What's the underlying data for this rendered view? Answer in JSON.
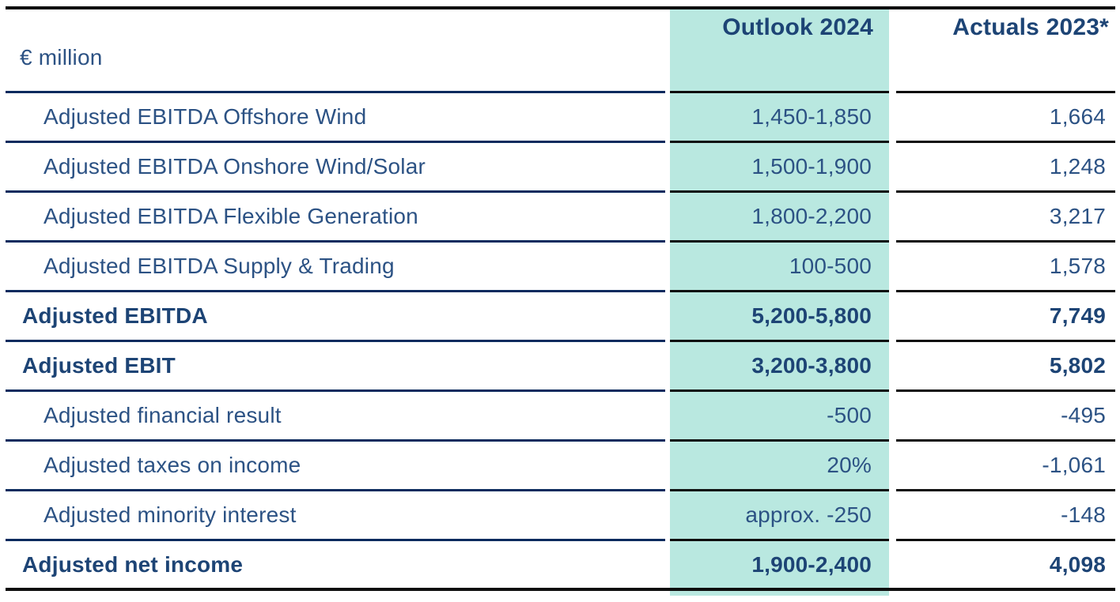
{
  "table": {
    "unit_label": "€ million",
    "columns": {
      "outlook": {
        "label": "Outlook 2024"
      },
      "actuals": {
        "label": "Actuals 2023*"
      }
    },
    "rows": [
      {
        "label": "Adjusted EBITDA Offshore Wind",
        "outlook": "1,450-1,850",
        "actuals": "1,664",
        "bold": false
      },
      {
        "label": "Adjusted EBITDA Onshore Wind/Solar",
        "outlook": "1,500-1,900",
        "actuals": "1,248",
        "bold": false
      },
      {
        "label": "Adjusted EBITDA Flexible Generation",
        "outlook": "1,800-2,200",
        "actuals": "3,217",
        "bold": false
      },
      {
        "label": "Adjusted EBITDA Supply & Trading",
        "outlook": "100-500",
        "actuals": "1,578",
        "bold": false
      },
      {
        "label": "Adjusted EBITDA",
        "outlook": "5,200-5,800",
        "actuals": "7,749",
        "bold": true
      },
      {
        "label": "Adjusted EBIT",
        "outlook": "3,200-3,800",
        "actuals": "5,802",
        "bold": true
      },
      {
        "label": "Adjusted financial result",
        "outlook": "-500",
        "actuals": "-495",
        "bold": false
      },
      {
        "label": "Adjusted taxes on income",
        "outlook": "20%",
        "actuals": "-1,061",
        "bold": false
      },
      {
        "label": "Adjusted minority interest",
        "outlook": "approx. -250",
        "actuals": "-148",
        "bold": false
      },
      {
        "label": "Adjusted net income",
        "outlook": "1,900-2,400",
        "actuals": "4,098",
        "bold": true
      }
    ]
  },
  "colors": {
    "teal": "#b9e8e0",
    "text": "#2c5284",
    "text-bold": "#1d4475",
    "line-navy": "#0b2b5e",
    "line-black": "#0e0e0e"
  }
}
